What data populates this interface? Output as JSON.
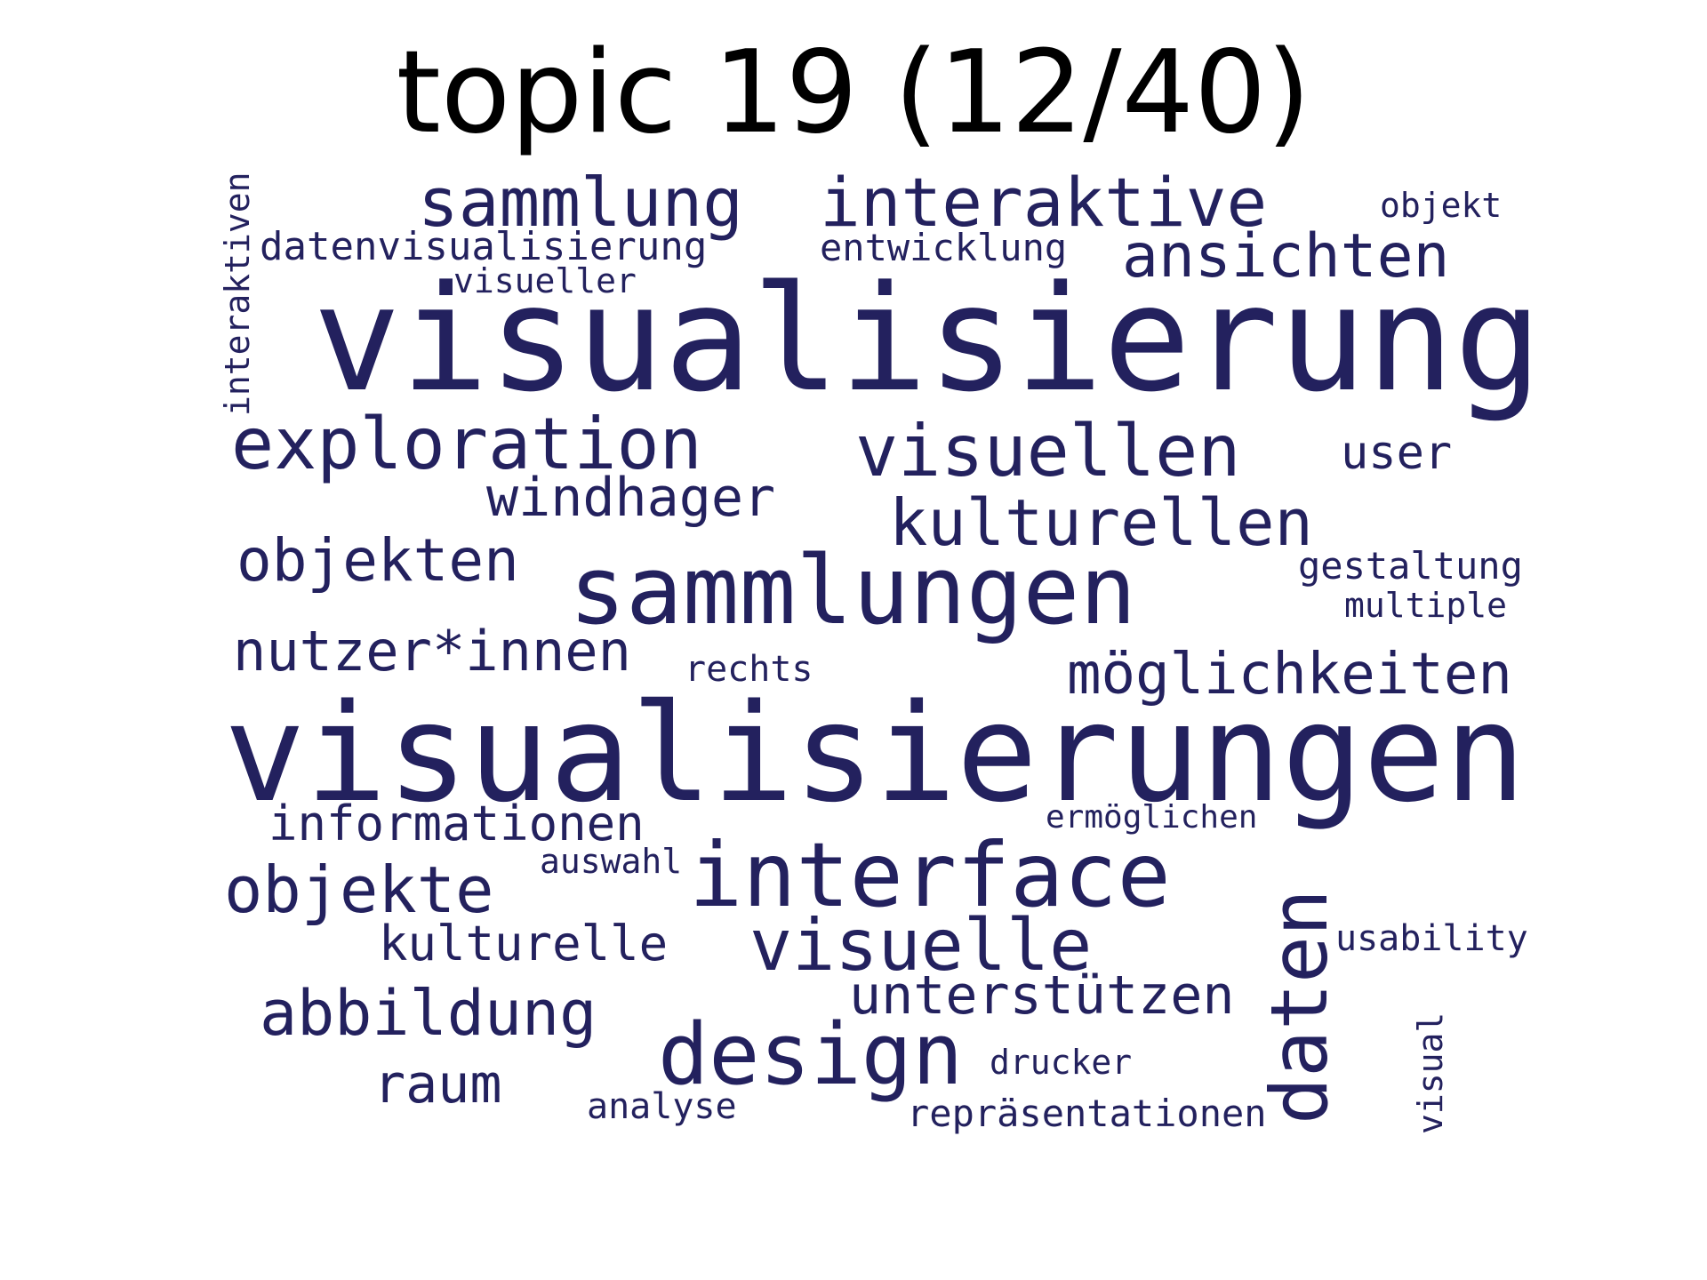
{
  "title": "topic 19 (12/40)",
  "word_color": "#23215e",
  "background_color": "#ffffff",
  "words": {
    "visualisierung": "visualisierung",
    "visualisierungen": "visualisierungen",
    "sammlungen": "sammlungen",
    "interface": "interface",
    "design": "design",
    "daten": "daten",
    "exploration": "exploration",
    "visuellen": "visuellen",
    "visuelle": "visuelle",
    "sammlung": "sammlung",
    "interaktive": "interaktive",
    "kulturellen": "kulturellen",
    "ansichten": "ansichten",
    "möglichkeiten": "möglichkeiten",
    "objekten": "objekten",
    "nutzer_innen": "nutzer*innen",
    "objekte": "objekte",
    "abbildung": "abbildung",
    "unterstützen": "unterstützen",
    "windhager": "windhager",
    "informationen": "informationen",
    "kulturelle": "kulturelle",
    "raum": "raum",
    "datenvisualisierung": "datenvisualisierung",
    "entwicklung": "entwicklung",
    "user": "user",
    "gestaltung": "gestaltung",
    "multiple": "multiple",
    "rechts": "rechts",
    "usability": "usability",
    "repräsentationen": "repräsentationen",
    "drucker": "drucker",
    "analyse": "analyse",
    "ermöglichen": "ermöglichen",
    "auswahl": "auswahl",
    "visueller": "visueller",
    "objekt": "objekt",
    "interaktiven": "interaktiven",
    "visual": "visual"
  }
}
